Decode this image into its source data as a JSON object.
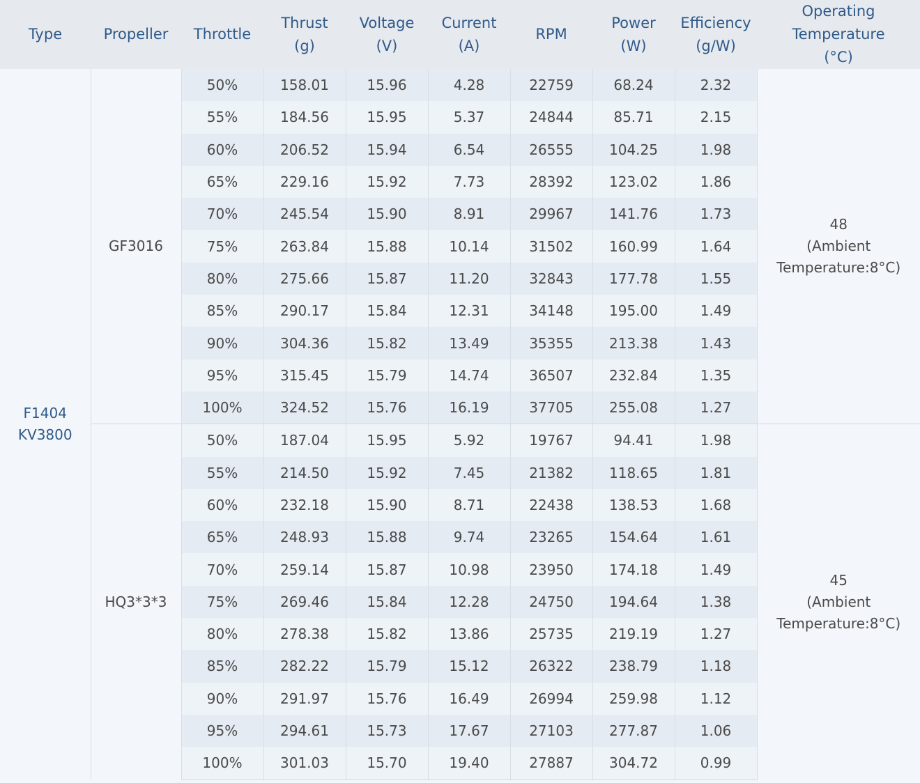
{
  "table": {
    "headers": [
      [
        "Type"
      ],
      [
        "Propeller"
      ],
      [
        "Throttle"
      ],
      [
        "Thrust",
        "(g)"
      ],
      [
        "Voltage",
        "(V)"
      ],
      [
        "Current",
        "(A)"
      ],
      [
        "RPM"
      ],
      [
        "Power",
        "(W)"
      ],
      [
        "Efficiency",
        "(g/W)"
      ],
      [
        "Operating",
        "Temperature",
        "(°C)"
      ]
    ],
    "type": [
      "F1404",
      "KV3800"
    ],
    "groups": [
      {
        "propeller": "GF3016",
        "temperature": [
          "48",
          "(Ambient",
          "Temperature:8°C)"
        ],
        "rows": [
          [
            "50%",
            "158.01",
            "15.96",
            "4.28",
            "22759",
            "68.24",
            "2.32"
          ],
          [
            "55%",
            "184.56",
            "15.95",
            "5.37",
            "24844",
            "85.71",
            "2.15"
          ],
          [
            "60%",
            "206.52",
            "15.94",
            "6.54",
            "26555",
            "104.25",
            "1.98"
          ],
          [
            "65%",
            "229.16",
            "15.92",
            "7.73",
            "28392",
            "123.02",
            "1.86"
          ],
          [
            "70%",
            "245.54",
            "15.90",
            "8.91",
            "29967",
            "141.76",
            "1.73"
          ],
          [
            "75%",
            "263.84",
            "15.88",
            "10.14",
            "31502",
            "160.99",
            "1.64"
          ],
          [
            "80%",
            "275.66",
            "15.87",
            "11.20",
            "32843",
            "177.78",
            "1.55"
          ],
          [
            "85%",
            "290.17",
            "15.84",
            "12.31",
            "34148",
            "195.00",
            "1.49"
          ],
          [
            "90%",
            "304.36",
            "15.82",
            "13.49",
            "35355",
            "213.38",
            "1.43"
          ],
          [
            "95%",
            "315.45",
            "15.79",
            "14.74",
            "36507",
            "232.84",
            "1.35"
          ],
          [
            "100%",
            "324.52",
            "15.76",
            "16.19",
            "37705",
            "255.08",
            "1.27"
          ]
        ]
      },
      {
        "propeller": "HQ3*3*3",
        "temperature": [
          "45",
          "(Ambient",
          "Temperature:8°C)"
        ],
        "rows": [
          [
            "50%",
            "187.04",
            "15.95",
            "5.92",
            "19767",
            "94.41",
            "1.98"
          ],
          [
            "55%",
            "214.50",
            "15.92",
            "7.45",
            "21382",
            "118.65",
            "1.81"
          ],
          [
            "60%",
            "232.18",
            "15.90",
            "8.71",
            "22438",
            "138.53",
            "1.68"
          ],
          [
            "65%",
            "248.93",
            "15.88",
            "9.74",
            "23265",
            "154.64",
            "1.61"
          ],
          [
            "70%",
            "259.14",
            "15.87",
            "10.98",
            "23950",
            "174.18",
            "1.49"
          ],
          [
            "75%",
            "269.46",
            "15.84",
            "12.28",
            "24750",
            "194.64",
            "1.38"
          ],
          [
            "80%",
            "278.38",
            "15.82",
            "13.86",
            "25735",
            "219.19",
            "1.27"
          ],
          [
            "85%",
            "282.22",
            "15.79",
            "15.12",
            "26322",
            "238.79",
            "1.18"
          ],
          [
            "90%",
            "291.97",
            "15.76",
            "16.49",
            "26994",
            "259.98",
            "1.12"
          ],
          [
            "95%",
            "294.61",
            "15.73",
            "17.67",
            "27103",
            "277.87",
            "1.06"
          ],
          [
            "100%",
            "301.03",
            "15.70",
            "19.40",
            "27887",
            "304.72",
            "0.99"
          ]
        ]
      }
    ]
  }
}
